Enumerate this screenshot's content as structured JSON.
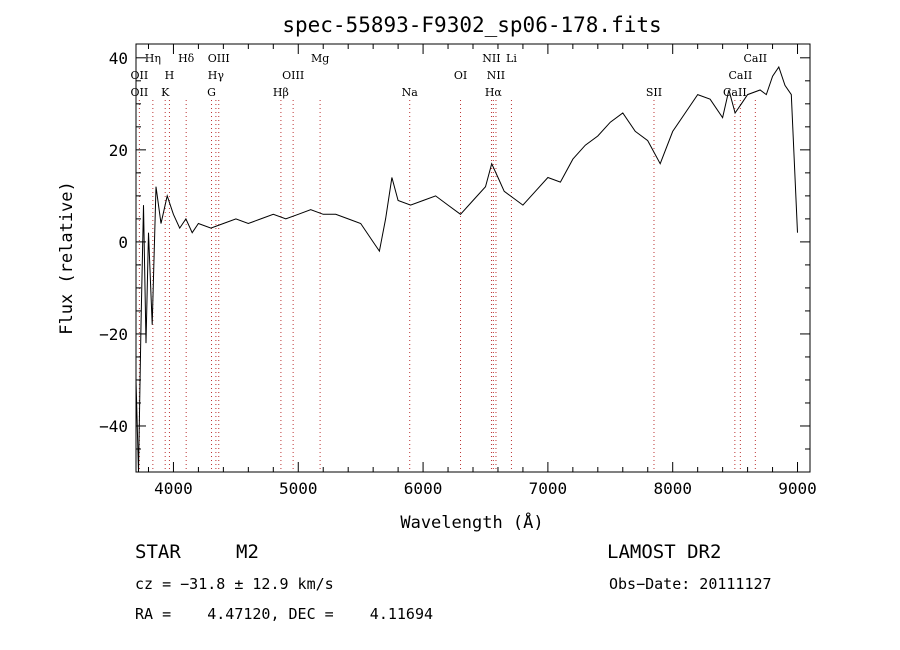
{
  "chart_data": {
    "type": "line",
    "title": "spec-55893-F9302_sp06-178.fits",
    "xlabel": "Wavelength (Å)",
    "ylabel": "Flux (relative)",
    "xlim": [
      3700,
      9100
    ],
    "ylim": [
      -50,
      43
    ],
    "xticks": [
      4000,
      5000,
      6000,
      7000,
      8000,
      9000
    ],
    "yticks": [
      -40,
      -20,
      0,
      20,
      40
    ],
    "grid": false,
    "series": [
      {
        "color": "#000000",
        "x": [
          3700,
          3720,
          3740,
          3760,
          3780,
          3800,
          3830,
          3860,
          3900,
          3950,
          4000,
          4050,
          4100,
          4150,
          4200,
          4300,
          4400,
          4500,
          4600,
          4700,
          4800,
          4900,
          5000,
          5100,
          5200,
          5300,
          5400,
          5500,
          5600,
          5650,
          5700,
          5750,
          5800,
          5900,
          6000,
          6100,
          6200,
          6300,
          6400,
          6500,
          6550,
          6600,
          6650,
          6700,
          6800,
          6900,
          7000,
          7100,
          7200,
          7300,
          7400,
          7500,
          7600,
          7700,
          7800,
          7900,
          8000,
          8100,
          8200,
          8300,
          8400,
          8450,
          8500,
          8550,
          8600,
          8700,
          8750,
          8800,
          8850,
          8900,
          8950,
          9000
        ],
        "y": [
          -30,
          -50,
          -18,
          8,
          -22,
          2,
          -18,
          12,
          4,
          10,
          6,
          3,
          5,
          2,
          4,
          3,
          4,
          5,
          4,
          5,
          6,
          5,
          6,
          7,
          6,
          6,
          5,
          4,
          0,
          -2,
          5,
          14,
          9,
          8,
          9,
          10,
          8,
          6,
          9,
          12,
          17,
          14,
          11,
          10,
          8,
          11,
          14,
          13,
          18,
          21,
          23,
          26,
          28,
          24,
          22,
          17,
          24,
          28,
          32,
          31,
          27,
          33,
          28,
          30,
          32,
          33,
          32,
          36,
          38,
          34,
          32,
          2
        ]
      }
    ],
    "lines": [
      {
        "label": "Hη",
        "x": 3835,
        "row": 1
      },
      {
        "label": "OII",
        "x": 3727,
        "row": 2
      },
      {
        "label": "OII",
        "x": 3727,
        "row": 3
      },
      {
        "label": "H",
        "x": 3968,
        "row": 2
      },
      {
        "label": "K",
        "x": 3934,
        "row": 3
      },
      {
        "label": "Hδ",
        "x": 4102,
        "row": 1
      },
      {
        "label": "OIII",
        "x": 4363,
        "row": 1
      },
      {
        "label": "Hγ",
        "x": 4340,
        "row": 2
      },
      {
        "label": "G",
        "x": 4305,
        "row": 3
      },
      {
        "label": "Mg",
        "x": 5175,
        "row": 1
      },
      {
        "label": "OIII",
        "x": 4959,
        "row": 2
      },
      {
        "label": "Hβ",
        "x": 4861,
        "row": 3
      },
      {
        "label": "Na",
        "x": 5893,
        "row": 3
      },
      {
        "label": "NII",
        "x": 6548,
        "row": 1
      },
      {
        "label": "Li",
        "x": 6708,
        "row": 1
      },
      {
        "label": "OI",
        "x": 6300,
        "row": 2
      },
      {
        "label": "NII",
        "x": 6584,
        "row": 2
      },
      {
        "label": "Hα",
        "x": 6563,
        "row": 3
      },
      {
        "label": "SII",
        "x": 7850,
        "row": 3
      },
      {
        "label": "CaII",
        "x": 8662,
        "row": 1
      },
      {
        "label": "CaII",
        "x": 8542,
        "row": 2
      },
      {
        "label": "CaII",
        "x": 8498,
        "row": 3
      }
    ]
  },
  "info": {
    "class": "STAR",
    "subclass": "M2",
    "survey": "LAMOST DR2",
    "cz": "cz = −31.8 ± 12.9 km/s",
    "obs_date": "Obs−Date: 20111127",
    "coords": "RA =    4.47120, DEC =    4.11694"
  }
}
